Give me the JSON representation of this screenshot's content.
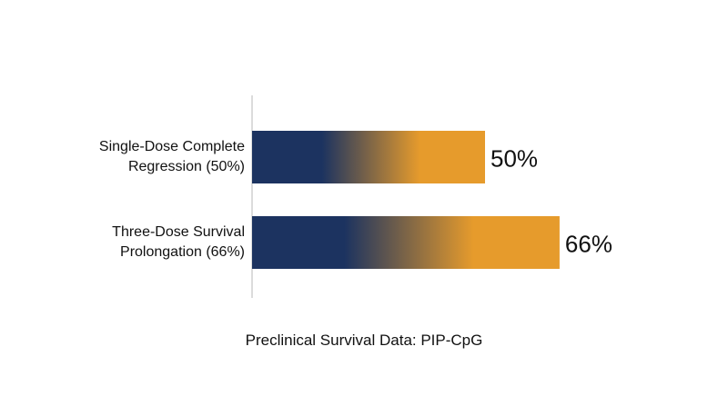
{
  "chart_data": {
    "type": "hbar",
    "title": "Preclinical Survival Data: PIP-CpG",
    "categories": [
      "Single-Dose Complete Regression (50%)",
      "Three-Dose Survival Prolongation (66%)"
    ],
    "values": [
      50,
      66
    ],
    "value_labels": [
      "50%",
      "66%"
    ],
    "gradient": [
      "#1c3360",
      "#e69b2c"
    ]
  }
}
